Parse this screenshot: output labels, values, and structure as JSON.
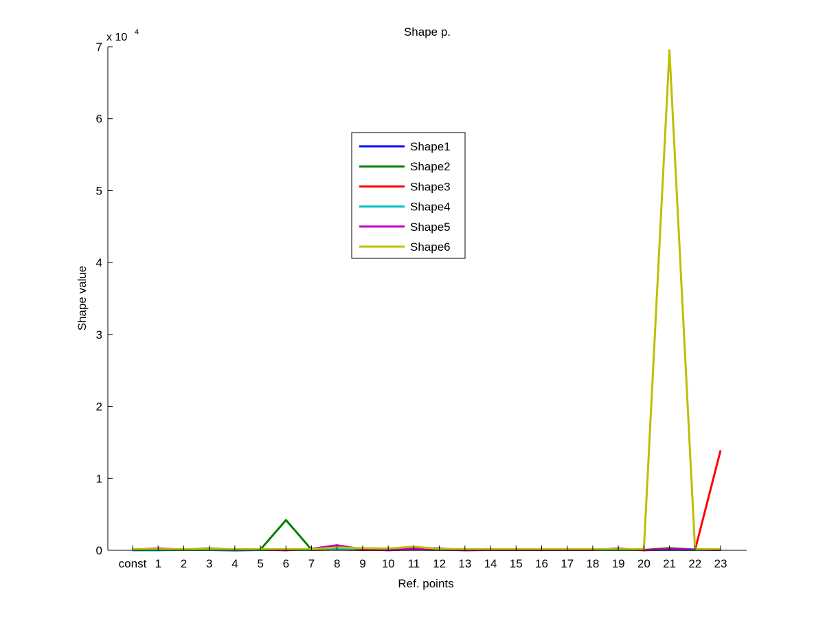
{
  "chart_data": {
    "type": "line",
    "title": "Shape p.",
    "xlabel": "Ref. points",
    "ylabel": "Shape value",
    "y_exponent_label": "x 10",
    "y_exponent": "4",
    "categories": [
      "const",
      "1",
      "2",
      "3",
      "4",
      "5",
      "6",
      "7",
      "8",
      "9",
      "10",
      "11",
      "12",
      "13",
      "14",
      "15",
      "16",
      "17",
      "18",
      "19",
      "20",
      "21",
      "22",
      "23"
    ],
    "yticks": [
      0,
      1,
      2,
      3,
      4,
      5,
      6,
      7
    ],
    "ylim": [
      0,
      70000
    ],
    "legend_position": "upper-center",
    "series": [
      {
        "name": "Shape1",
        "color": "#0000ff",
        "values": [
          50,
          50,
          50,
          50,
          0,
          50,
          50,
          100,
          150,
          100,
          100,
          400,
          250,
          50,
          50,
          50,
          50,
          50,
          50,
          50,
          50,
          100,
          100,
          50
        ]
      },
      {
        "name": "Shape2",
        "color": "#008000",
        "values": [
          100,
          100,
          100,
          250,
          100,
          100,
          4200,
          100,
          200,
          200,
          250,
          200,
          100,
          50,
          50,
          50,
          50,
          50,
          50,
          150,
          50,
          300,
          100,
          100
        ]
      },
      {
        "name": "Shape3",
        "color": "#ff0000",
        "values": [
          50,
          50,
          50,
          50,
          50,
          50,
          50,
          50,
          100,
          50,
          50,
          100,
          50,
          50,
          50,
          50,
          50,
          50,
          50,
          50,
          50,
          150,
          50,
          13900
        ]
      },
      {
        "name": "Shape4",
        "color": "#00bfbf",
        "values": [
          0,
          0,
          50,
          50,
          50,
          50,
          50,
          50,
          150,
          150,
          50,
          100,
          50,
          50,
          50,
          50,
          50,
          50,
          50,
          50,
          50,
          50,
          50,
          100
        ]
      },
      {
        "name": "Shape5",
        "color": "#bf00bf",
        "values": [
          100,
          250,
          100,
          100,
          100,
          100,
          0,
          200,
          700,
          150,
          0,
          200,
          100,
          0,
          50,
          50,
          50,
          50,
          50,
          250,
          0,
          150,
          100,
          50
        ]
      },
      {
        "name": "Shape6",
        "color": "#bfbf00",
        "values": [
          150,
          150,
          150,
          150,
          150,
          150,
          150,
          150,
          400,
          300,
          250,
          500,
          200,
          150,
          150,
          150,
          150,
          150,
          150,
          150,
          150,
          69500,
          150,
          150
        ]
      }
    ]
  }
}
